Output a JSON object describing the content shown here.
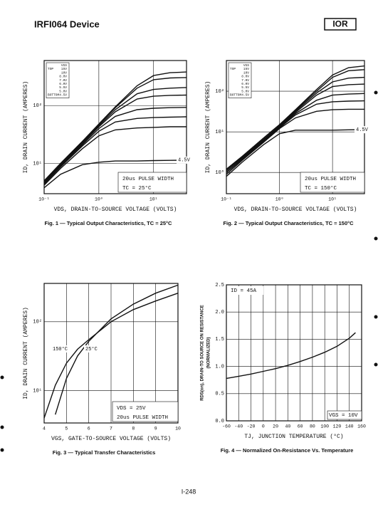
{
  "header": {
    "title": "IRFI064 Device",
    "logo": "IOR"
  },
  "footer": {
    "page": "I-248"
  },
  "chart_data": [
    {
      "type": "line",
      "title": "Fig. 1 — Typical Output Characteristics, TC = 25°C",
      "xlabel": "VDS, DRAIN-TO-SOURCE VOLTAGE (VOLTS)",
      "ylabel": "ID, DRAIN CURRENT (AMPERES)",
      "xscale": "log",
      "yscale": "log",
      "grid": true,
      "xlim": [
        0.1,
        40
      ],
      "ylim": [
        3,
        600
      ],
      "xticks": [
        {
          "value": 0.1,
          "label": "10⁻¹"
        },
        {
          "value": 1,
          "label": "10⁰"
        },
        {
          "value": 10,
          "label": "10¹"
        }
      ],
      "yticks": [
        {
          "value": 10,
          "label": "10¹"
        },
        {
          "value": 100,
          "label": "10²"
        }
      ],
      "legend_title": "VGS",
      "legend_top": "TOP",
      "legend_bottom": "BOTTOM",
      "annotations": [
        "20us PULSE WIDTH",
        "TC = 25°C"
      ],
      "x": [
        0.1,
        0.2,
        0.5,
        1,
        2,
        5,
        10,
        20,
        40
      ],
      "series": [
        {
          "name": "15V",
          "color": "#111",
          "values": [
            5,
            10,
            24,
            48,
            95,
            220,
            330,
            370,
            380
          ]
        },
        {
          "name": "10V",
          "color": "#111",
          "values": [
            5,
            10,
            24,
            47,
            92,
            200,
            280,
            300,
            305
          ]
        },
        {
          "name": "8.0V",
          "color": "#111",
          "values": [
            4.8,
            9.5,
            23,
            45,
            85,
            160,
            190,
            200,
            205
          ]
        },
        {
          "name": "7.0V",
          "color": "#111",
          "values": [
            4.7,
            9.3,
            22,
            43,
            78,
            130,
            145,
            150,
            152
          ]
        },
        {
          "name": "6.0V",
          "color": "#111",
          "values": [
            4.5,
            9,
            21,
            40,
            65,
            85,
            90,
            92,
            93
          ]
        },
        {
          "name": "5.5V",
          "color": "#111",
          "values": [
            4.4,
            8.7,
            20,
            36,
            52,
            60,
            62,
            63,
            64
          ]
        },
        {
          "name": "5.0V",
          "color": "#111",
          "values": [
            4.2,
            8.2,
            18,
            30,
            38,
            41,
            42,
            43,
            43
          ]
        },
        {
          "name": "4.5V",
          "color": "#111",
          "values": [
            3.8,
            6.5,
            9.5,
            10.5,
            11,
            11,
            11.2,
            11.3,
            11.4
          ]
        }
      ]
    },
    {
      "type": "line",
      "title": "Fig. 2 — Typical Output Characteristics, TC = 150°C",
      "xlabel": "VDS, DRAIN-TO-SOURCE VOLTAGE (VOLTS)",
      "ylabel": "ID, DRAIN CURRENT (AMPERES)",
      "xscale": "log",
      "yscale": "log",
      "grid": true,
      "xlim": [
        0.1,
        40
      ],
      "ylim": [
        0.3,
        570
      ],
      "xticks": [
        {
          "value": 0.1,
          "label": "10⁻¹"
        },
        {
          "value": 1,
          "label": "10⁰"
        },
        {
          "value": 10,
          "label": "10¹"
        }
      ],
      "yticks": [
        {
          "value": 1,
          "label": "10⁰"
        },
        {
          "value": 10,
          "label": "10¹"
        },
        {
          "value": 100,
          "label": "10²"
        }
      ],
      "legend_title": "VGS",
      "legend_top": "TOP",
      "legend_bottom": "BOTTOM",
      "annotations": [
        "20us PULSE WIDTH",
        "TC = 150°C"
      ],
      "x": [
        0.1,
        0.2,
        0.5,
        1,
        2,
        5,
        10,
        20,
        40
      ],
      "series": [
        {
          "name": "15V",
          "color": "#111",
          "values": [
            1.2,
            2.5,
            7,
            15,
            35,
            110,
            250,
            380,
            420
          ]
        },
        {
          "name": "10V",
          "color": "#111",
          "values": [
            1.2,
            2.5,
            7,
            15,
            34,
            100,
            220,
            320,
            340
          ]
        },
        {
          "name": "8.0V",
          "color": "#111",
          "values": [
            1.1,
            2.4,
            6.5,
            14,
            32,
            90,
            170,
            210,
            220
          ]
        },
        {
          "name": "7.0V",
          "color": "#111",
          "values": [
            1.1,
            2.3,
            6.2,
            13.5,
            30,
            80,
            130,
            145,
            150
          ]
        },
        {
          "name": "6.0V",
          "color": "#111",
          "values": [
            1,
            2.2,
            6,
            13,
            28,
            60,
            80,
            85,
            88
          ]
        },
        {
          "name": "5.5V",
          "color": "#111",
          "values": [
            1,
            2.1,
            5.8,
            12.5,
            26,
            48,
            55,
            57,
            58
          ]
        },
        {
          "name": "5.0V",
          "color": "#111",
          "values": [
            0.9,
            2,
            5.5,
            12,
            22,
            32,
            35,
            36,
            36
          ]
        },
        {
          "name": "4.5V",
          "color": "#111",
          "values": [
            0.8,
            1.8,
            4.8,
            9,
            11,
            11,
            11,
            11.2,
            11.3
          ]
        }
      ]
    },
    {
      "type": "line",
      "title": "Fig. 3 — Typical Transfer Characteristics",
      "xlabel": "VGS, GATE-TO-SOURCE VOLTAGE (VOLTS)",
      "ylabel": "ID, DRAIN CURRENT (AMPERES)",
      "xscale": "linear",
      "yscale": "log",
      "grid": true,
      "xlim": [
        4,
        10
      ],
      "ylim": [
        3.4,
        360
      ],
      "xticks": [
        4,
        5,
        6,
        7,
        8,
        9,
        10
      ],
      "yticks": [
        {
          "value": 10,
          "label": "10¹"
        },
        {
          "value": 100,
          "label": "10²"
        }
      ],
      "annotations": [
        "VDS = 25V",
        "20us PULSE WIDTH"
      ],
      "x": [
        4,
        4.5,
        5,
        5.5,
        6,
        7,
        8,
        9,
        10
      ],
      "series": [
        {
          "name": "150°C",
          "color": "#111",
          "values": [
            4,
            12,
            25,
            40,
            55,
            100,
            150,
            200,
            260
          ]
        },
        {
          "name": "25°C",
          "color": "#111",
          "values": [
            null,
            4.5,
            15,
            32,
            52,
            110,
            180,
            260,
            340
          ]
        }
      ]
    },
    {
      "type": "line",
      "title": "Fig. 4 — Normalized On-Resistance Vs. Temperature",
      "xlabel": "TJ, JUNCTION TEMPERATURE (°C)",
      "ylabel": [
        "RDS(on), DRAIN-TO SOURCE ON RESISTANCE",
        "(NORMALIZED)"
      ],
      "xscale": "linear",
      "yscale": "linear",
      "grid": true,
      "xlim": [
        -60,
        160
      ],
      "ylim": [
        0,
        2.5
      ],
      "xticks": [
        -60,
        -40,
        -20,
        0,
        20,
        40,
        60,
        80,
        100,
        120,
        140,
        160
      ],
      "yticks": [
        {
          "value": 0,
          "label": "0.0"
        },
        0.5,
        {
          "value": 1,
          "label": "1.0"
        },
        1.5,
        {
          "value": 2,
          "label": "2.0"
        },
        2.5
      ],
      "annotations": [
        "ID = 45A",
        "VGS = 10V"
      ],
      "x": [
        -60,
        -40,
        -20,
        0,
        20,
        40,
        60,
        80,
        100,
        120,
        140,
        150
      ],
      "series": [
        {
          "color": "#111",
          "values": [
            0.78,
            0.82,
            0.86,
            0.91,
            0.96,
            1.02,
            1.09,
            1.17,
            1.26,
            1.37,
            1.52,
            1.62
          ]
        }
      ]
    }
  ]
}
